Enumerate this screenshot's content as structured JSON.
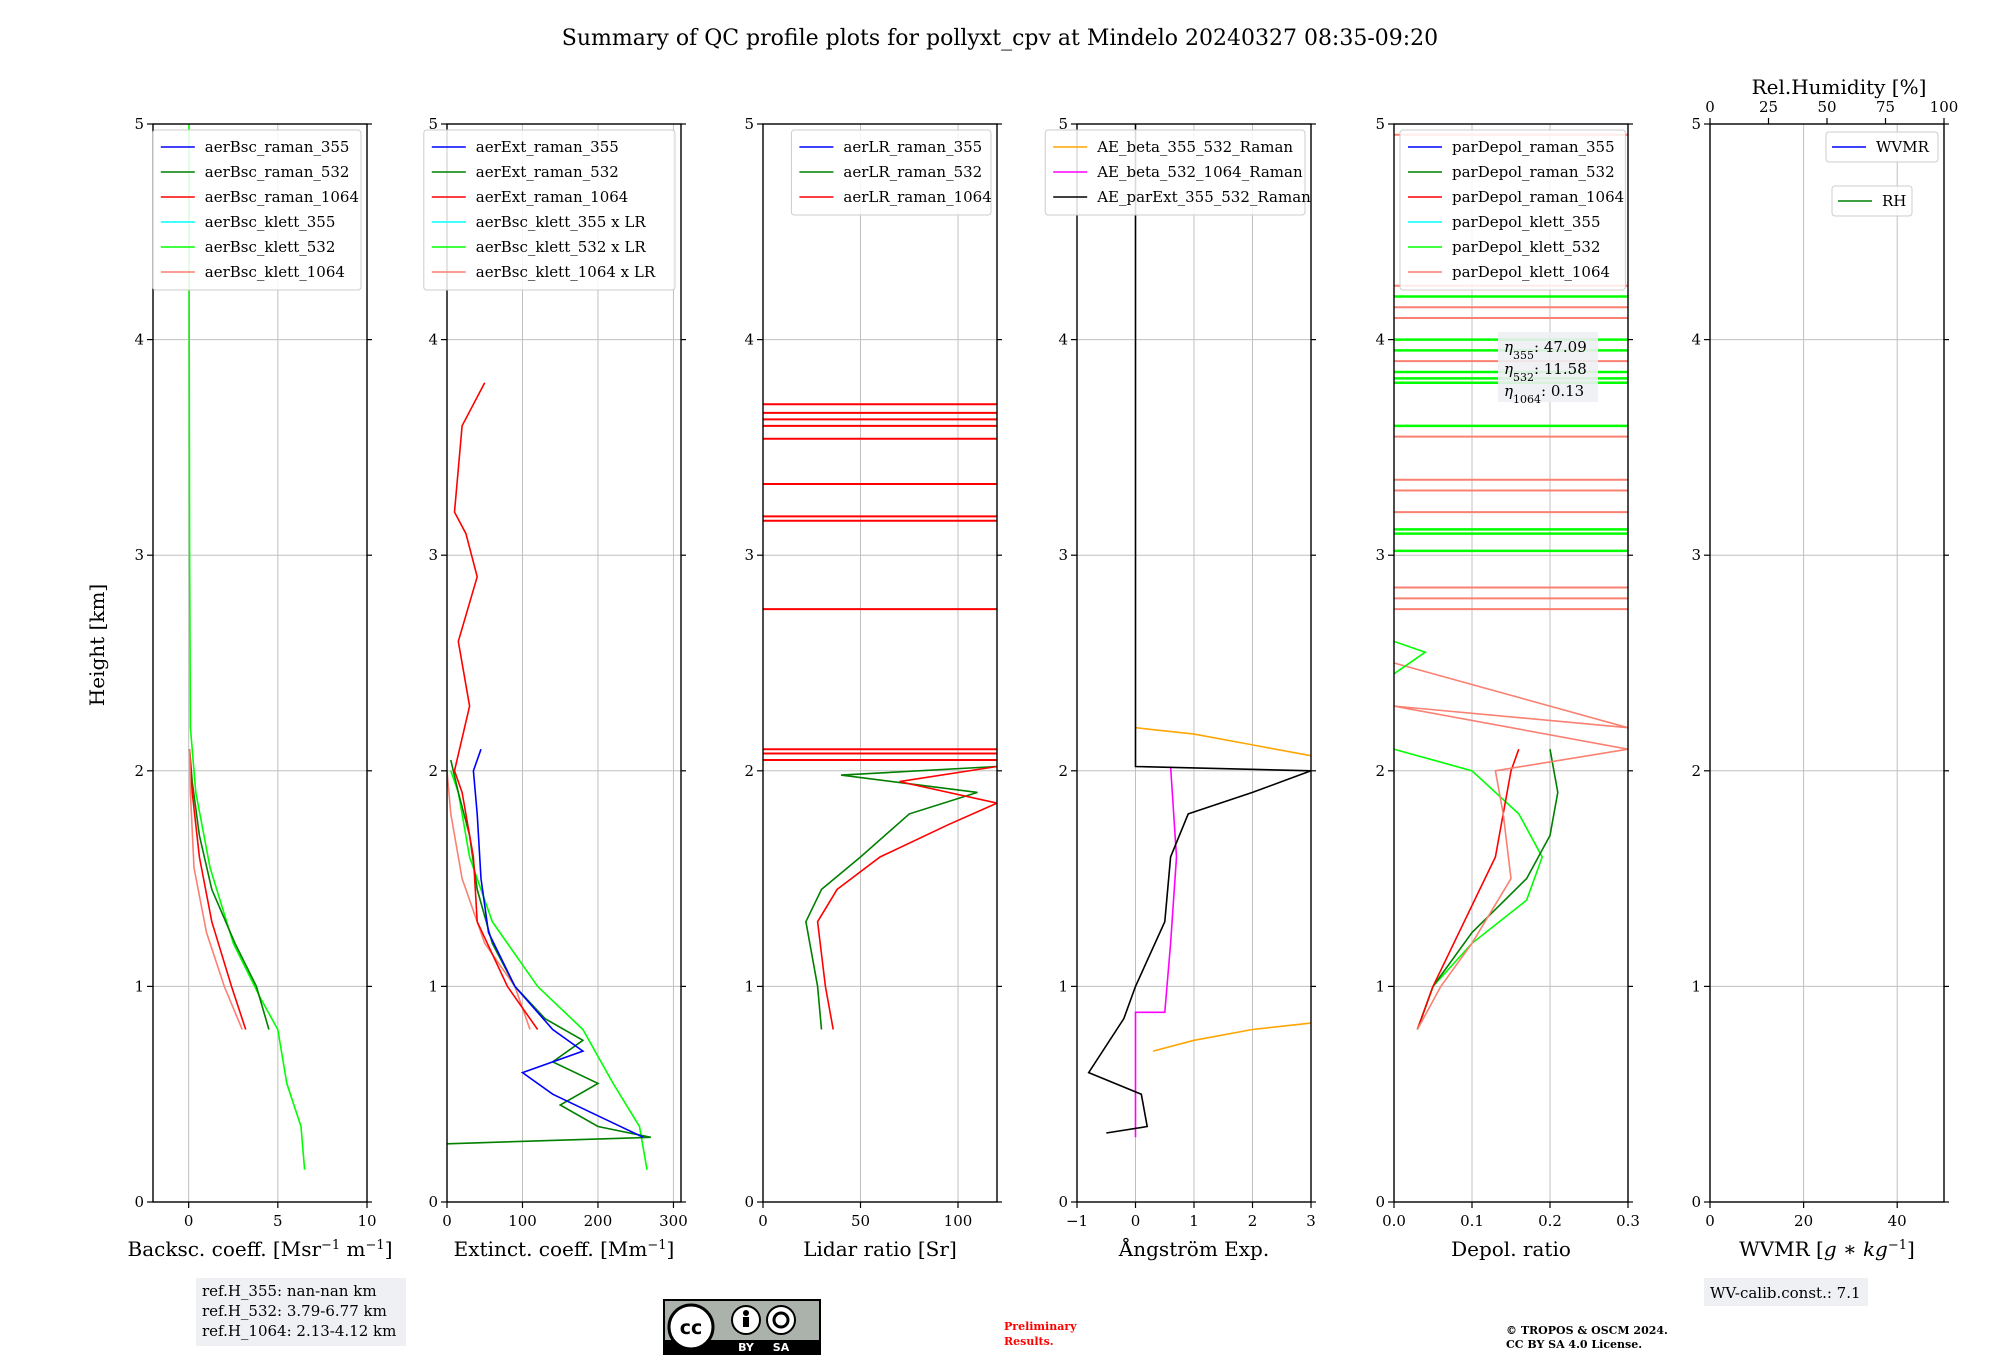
{
  "title": "Summary of QC profile plots for pollyxt_cpv at Mindelo 20240327 08:35-09:20",
  "ylabel": "Height [km]",
  "footer": {
    "refh": [
      "ref.H_355: nan-nan km",
      "ref.H_532: 3.79-6.77 km",
      "ref.H_1064: 2.13-4.12 km"
    ],
    "license_badge": {
      "by": "BY",
      "sa": "SA",
      "cc": "cc"
    },
    "preliminary": [
      "Preliminary",
      "Results."
    ],
    "copyright": [
      "© TROPOS & OSCM 2024.",
      "CC BY SA 4.0 License."
    ],
    "wv_calib": "WV-calib.const.: 7.1"
  },
  "colors": {
    "blue": "#0000ff",
    "green": "#008000",
    "red": "#ff0000",
    "cyan": "#00ffff",
    "lime": "#00ff00",
    "salmon": "#fa8072",
    "orange": "#ffa500",
    "magenta": "#ff00ff",
    "black": "#000000",
    "grid": "#c0c0c0"
  },
  "chart_data": [
    {
      "type": "line",
      "xlabel": "Backsc. coeff. [Msr$^{-1}$ m$^{-1}$]",
      "xlabel_text": "Backsc. coeff. [Msr",
      "xlabel_sup1": "−1",
      "xlabel_mid": " m",
      "xlabel_sup2": "−1",
      "xlabel_end": "]",
      "xlim": [
        -2,
        10
      ],
      "ylim": [
        0,
        5
      ],
      "xticks": [
        0,
        5,
        10
      ],
      "xticklabels": [
        "0",
        "5",
        "10"
      ],
      "yticks": [
        0,
        1,
        2,
        3,
        4,
        5
      ],
      "yticklabels": [
        "0",
        "1",
        "2",
        "3",
        "4",
        "5"
      ],
      "legend_placement": "top-right",
      "legend": [
        "aerBsc_raman_355",
        "aerBsc_raman_532",
        "aerBsc_raman_1064",
        "aerBsc_klett_355",
        "aerBsc_klett_532",
        "aerBsc_klett_1064"
      ],
      "legend_colors": [
        "blue",
        "green",
        "red",
        "cyan",
        "lime",
        "salmon"
      ],
      "series": [
        {
          "color": "lime",
          "points": [
            [
              6.5,
              0.15
            ],
            [
              6.3,
              0.35
            ],
            [
              5.5,
              0.55
            ],
            [
              5.0,
              0.8
            ],
            [
              4.0,
              0.95
            ],
            [
              2.5,
              1.2
            ],
            [
              1.2,
              1.55
            ],
            [
              0.4,
              1.9
            ],
            [
              0.1,
              2.2
            ],
            [
              0.05,
              3
            ],
            [
              0.03,
              4
            ],
            [
              0.02,
              5
            ]
          ]
        },
        {
          "color": "green",
          "points": [
            [
              4.5,
              0.8
            ],
            [
              3.8,
              1.0
            ],
            [
              2.6,
              1.2
            ],
            [
              1.3,
              1.45
            ],
            [
              0.6,
              1.7
            ],
            [
              0.2,
              1.95
            ],
            [
              0.05,
              2.1
            ]
          ]
        },
        {
          "color": "red",
          "points": [
            [
              3.2,
              0.8
            ],
            [
              2.4,
              1.0
            ],
            [
              1.3,
              1.3
            ],
            [
              0.6,
              1.6
            ],
            [
              0.2,
              1.9
            ],
            [
              0.05,
              2.1
            ]
          ]
        },
        {
          "color": "salmon",
          "points": [
            [
              3.0,
              0.8
            ],
            [
              2.0,
              1.0
            ],
            [
              1.0,
              1.25
            ],
            [
              0.3,
              1.55
            ],
            [
              0.1,
              1.9
            ],
            [
              0.05,
              2.1
            ]
          ]
        }
      ]
    },
    {
      "type": "line",
      "xlabel_text": "Extinct. coeff. [Mm",
      "xlabel_sup1": "−1",
      "xlabel_end": "]",
      "xlim": [
        0,
        310
      ],
      "ylim": [
        0,
        5
      ],
      "xticks": [
        0,
        100,
        200,
        300
      ],
      "xticklabels": [
        "0",
        "100",
        "200",
        "300"
      ],
      "yticks": [
        0,
        1,
        2,
        3,
        4,
        5
      ],
      "yticklabels": [
        "0",
        "1",
        "2",
        "3",
        "4",
        "5"
      ],
      "legend_placement": "top-right",
      "legend": [
        "aerExt_raman_355",
        "aerExt_raman_532",
        "aerExt_raman_1064",
        "aerBsc_klett_355 x LR",
        "aerBsc_klett_532 x LR",
        "aerBsc_klett_1064 x LR"
      ],
      "legend_colors": [
        "blue",
        "green",
        "red",
        "cyan",
        "lime",
        "salmon"
      ],
      "series": [
        {
          "color": "lime",
          "points": [
            [
              265,
              0.15
            ],
            [
              255,
              0.35
            ],
            [
              220,
              0.55
            ],
            [
              180,
              0.8
            ],
            [
              120,
              1.0
            ],
            [
              60,
              1.3
            ],
            [
              30,
              1.6
            ],
            [
              15,
              1.9
            ],
            [
              5,
              2.0
            ]
          ]
        },
        {
          "color": "salmon",
          "points": [
            [
              110,
              0.8
            ],
            [
              90,
              1.0
            ],
            [
              50,
              1.2
            ],
            [
              20,
              1.5
            ],
            [
              5,
              1.8
            ],
            [
              0,
              2.0
            ]
          ]
        },
        {
          "color": "green",
          "points": [
            [
              0,
              0.27
            ],
            [
              270,
              0.3
            ],
            [
              200,
              0.35
            ],
            [
              150,
              0.45
            ],
            [
              200,
              0.55
            ],
            [
              140,
              0.65
            ],
            [
              180,
              0.75
            ],
            [
              130,
              0.85
            ],
            [
              90,
              1.0
            ],
            [
              60,
              1.2
            ],
            [
              40,
              1.45
            ],
            [
              30,
              1.7
            ],
            [
              15,
              1.9
            ],
            [
              5,
              2.05
            ]
          ]
        },
        {
          "color": "blue",
          "points": [
            [
              260,
              0.3
            ],
            [
              200,
              0.4
            ],
            [
              140,
              0.5
            ],
            [
              100,
              0.6
            ],
            [
              180,
              0.7
            ],
            [
              140,
              0.8
            ],
            [
              90,
              1.0
            ],
            [
              55,
              1.25
            ],
            [
              45,
              1.5
            ],
            [
              40,
              1.8
            ],
            [
              35,
              2.0
            ],
            [
              45,
              2.1
            ]
          ]
        },
        {
          "color": "red",
          "points": [
            [
              120,
              0.8
            ],
            [
              80,
              1.0
            ],
            [
              40,
              1.3
            ],
            [
              35,
              1.6
            ],
            [
              20,
              1.9
            ],
            [
              10,
              2.0
            ],
            [
              30,
              2.3
            ],
            [
              15,
              2.6
            ],
            [
              40,
              2.9
            ],
            [
              25,
              3.1
            ],
            [
              10,
              3.2
            ],
            [
              20,
              3.6
            ],
            [
              50,
              3.8
            ]
          ]
        }
      ]
    },
    {
      "type": "line",
      "xlabel_text": "Lidar ratio [Sr]",
      "xlim": [
        0,
        120
      ],
      "ylim": [
        0,
        5
      ],
      "xticks": [
        0,
        50,
        100
      ],
      "xticklabels": [
        "0",
        "50",
        "100"
      ],
      "yticks": [
        0,
        1,
        2,
        3,
        4,
        5
      ],
      "yticklabels": [
        "0",
        "1",
        "2",
        "3",
        "4",
        "5"
      ],
      "legend_placement": "top-right",
      "legend": [
        "aerLR_raman_355",
        "aerLR_raman_532",
        "aerLR_raman_1064"
      ],
      "legend_colors": [
        "blue",
        "green",
        "red"
      ],
      "hlines_red": [
        2.05,
        2.08,
        2.1,
        2.75,
        3.16,
        3.18,
        3.33,
        3.54,
        3.6,
        3.63,
        3.66,
        3.7
      ],
      "series": [
        {
          "color": "green",
          "points": [
            [
              30,
              0.8
            ],
            [
              28,
              1.0
            ],
            [
              22,
              1.3
            ],
            [
              30,
              1.45
            ],
            [
              50,
              1.6
            ],
            [
              75,
              1.8
            ],
            [
              110,
              1.9
            ],
            [
              40,
              1.98
            ],
            [
              120,
              2.02
            ]
          ]
        },
        {
          "color": "red",
          "points": [
            [
              36,
              0.8
            ],
            [
              32,
              1.0
            ],
            [
              28,
              1.3
            ],
            [
              38,
              1.45
            ],
            [
              60,
              1.6
            ],
            [
              95,
              1.75
            ],
            [
              120,
              1.85
            ],
            [
              70,
              1.95
            ],
            [
              120,
              2.02
            ]
          ]
        }
      ]
    },
    {
      "type": "line",
      "xlabel_text": "Ångström Exp.",
      "xlim": [
        -1,
        3
      ],
      "ylim": [
        0,
        5
      ],
      "xticks": [
        -1,
        0,
        1,
        2,
        3
      ],
      "xticklabels": [
        "−1",
        "0",
        "1",
        "2",
        "3"
      ],
      "yticks": [
        0,
        1,
        2,
        3,
        4,
        5
      ],
      "yticklabels": [
        "0",
        "1",
        "2",
        "3",
        "4",
        "5"
      ],
      "legend_placement": "top-right",
      "legend": [
        "AE_beta_355_532_Raman",
        "AE_beta_532_1064_Raman",
        "AE_parExt_355_532_Raman"
      ],
      "legend_colors": [
        "orange",
        "magenta",
        "black"
      ],
      "series": [
        {
          "color": "orange",
          "points": [
            [
              0.3,
              0.7
            ],
            [
              1.0,
              0.75
            ],
            [
              2.0,
              0.8
            ],
            [
              3.0,
              0.83
            ]
          ]
        },
        {
          "color": "orange",
          "points": [
            [
              0.0,
              2.2
            ],
            [
              1.0,
              2.17
            ],
            [
              2.0,
              2.12
            ],
            [
              3.0,
              2.07
            ]
          ]
        },
        {
          "color": "magenta",
          "points": [
            [
              0.0,
              0.3
            ],
            [
              0.0,
              0.88
            ],
            [
              0.5,
              0.88
            ],
            [
              0.6,
              1.2
            ],
            [
              0.7,
              1.6
            ],
            [
              0.6,
              2.02
            ]
          ]
        },
        {
          "color": "black",
          "points": [
            [
              -0.5,
              0.32
            ],
            [
              0.2,
              0.35
            ],
            [
              0.1,
              0.5
            ],
            [
              -0.8,
              0.6
            ],
            [
              -0.2,
              0.85
            ],
            [
              0.0,
              1.0
            ],
            [
              0.5,
              1.3
            ],
            [
              0.6,
              1.6
            ],
            [
              0.9,
              1.8
            ],
            [
              2.0,
              1.9
            ],
            [
              3.0,
              2.0
            ],
            [
              0.0,
              2.02
            ],
            [
              0.0,
              5.0
            ]
          ]
        }
      ]
    },
    {
      "type": "line",
      "xlabel_text": "Depol. ratio",
      "xlim": [
        0,
        0.3
      ],
      "ylim": [
        0,
        5
      ],
      "xticks": [
        0,
        0.1,
        0.2,
        0.3
      ],
      "xticklabels": [
        "0.0",
        "0.1",
        "0.2",
        "0.3"
      ],
      "yticks": [
        0,
        1,
        2,
        3,
        4,
        5
      ],
      "yticklabels": [
        "0",
        "1",
        "2",
        "3",
        "4",
        "5"
      ],
      "legend_placement": "top-left",
      "legend": [
        "parDepol_raman_355",
        "parDepol_raman_532",
        "parDepol_raman_1064",
        "parDepol_klett_355",
        "parDepol_klett_532",
        "parDepol_klett_1064"
      ],
      "legend_colors": [
        "blue",
        "green",
        "red",
        "cyan",
        "lime",
        "salmon"
      ],
      "annotation": [
        {
          "sym": "η",
          "sub": "355",
          "value": ": 47.09"
        },
        {
          "sym": "η",
          "sub": "532",
          "value": ": 11.58"
        },
        {
          "sym": "η",
          "sub": "1064",
          "value": ": 0.13"
        }
      ],
      "hlines_lime": [
        3.02,
        3.1,
        3.12,
        3.6,
        3.8,
        3.82,
        3.85,
        3.95,
        4.0,
        4.2
      ],
      "hlines_salmon": [
        2.75,
        2.8,
        2.85,
        3.2,
        3.3,
        3.35,
        3.55,
        3.9,
        4.1,
        4.15,
        4.25,
        4.95
      ],
      "series": [
        {
          "color": "lime",
          "points": [
            [
              0.03,
              0.8
            ],
            [
              0.05,
              1.0
            ],
            [
              0.1,
              1.2
            ],
            [
              0.17,
              1.4
            ],
            [
              0.19,
              1.6
            ],
            [
              0.16,
              1.8
            ],
            [
              0.1,
              2.0
            ],
            [
              0.0,
              2.1
            ]
          ]
        },
        {
          "color": "green",
          "points": [
            [
              0.03,
              0.8
            ],
            [
              0.05,
              1.0
            ],
            [
              0.1,
              1.25
            ],
            [
              0.17,
              1.5
            ],
            [
              0.2,
              1.7
            ],
            [
              0.21,
              1.9
            ],
            [
              0.2,
              2.1
            ]
          ]
        },
        {
          "color": "red",
          "points": [
            [
              0.03,
              0.8
            ],
            [
              0.05,
              1.0
            ],
            [
              0.09,
              1.3
            ],
            [
              0.13,
              1.6
            ],
            [
              0.14,
              1.8
            ],
            [
              0.15,
              2.0
            ],
            [
              0.16,
              2.1
            ]
          ]
        },
        {
          "color": "salmon",
          "points": [
            [
              0.03,
              0.8
            ],
            [
              0.06,
              1.0
            ],
            [
              0.1,
              1.2
            ],
            [
              0.15,
              1.5
            ],
            [
              0.14,
              1.8
            ],
            [
              0.13,
              2.0
            ],
            [
              0.3,
              2.1
            ],
            [
              0.0,
              2.3
            ],
            [
              0.3,
              2.2
            ],
            [
              0.0,
              2.5
            ]
          ]
        },
        {
          "color": "lime",
          "points": [
            [
              0.0,
              2.45
            ],
            [
              0.04,
              2.55
            ],
            [
              0.0,
              2.6
            ]
          ]
        }
      ]
    },
    {
      "type": "line",
      "xlabel_text": "WVMR [",
      "xlabel_italic": "g ∗ kg",
      "xlabel_sup1": "−1",
      "xlabel_end": "]",
      "top_xlabel": "Rel.Humidity [%]",
      "top_xticks": [
        0,
        25,
        50,
        75,
        100
      ],
      "top_xticklabels": [
        "0",
        "25",
        "50",
        "75",
        "100"
      ],
      "xlim": [
        0,
        50
      ],
      "ylim": [
        0,
        5
      ],
      "xticks": [
        0,
        20,
        40
      ],
      "xticklabels": [
        "0",
        "20",
        "40"
      ],
      "yticks": [
        0,
        1,
        2,
        3,
        4,
        5
      ],
      "yticklabels": [
        "0",
        "1",
        "2",
        "3",
        "4",
        "5"
      ],
      "legend": [
        "WVMR",
        "RH"
      ],
      "legend_colors": [
        "blue",
        "green"
      ],
      "series": []
    }
  ]
}
